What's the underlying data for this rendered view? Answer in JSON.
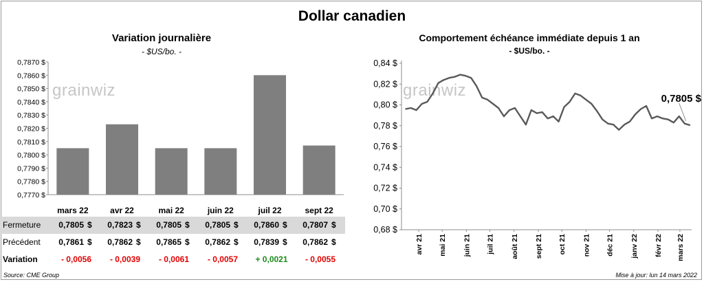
{
  "title": "Dollar canadien",
  "left": {
    "title": "Variation  journalière",
    "subtitle": "- $US/bo. -",
    "watermark": "grainwiz"
  },
  "right": {
    "title": "Comportement échéance immédiate depuis 1 an",
    "subtitle": "- $US/bo. -",
    "watermark": "grainwiz",
    "last_value_label": "0,7805 $"
  },
  "table": {
    "rows": [
      {
        "label": "Fermeture",
        "cells": [
          "0,7805",
          "0,7823",
          "0,7805",
          "0,7805",
          "0,7860",
          "0,7807"
        ]
      },
      {
        "label": "Précédent",
        "cells": [
          "0,7861",
          "0,7862",
          "0,7865",
          "0,7862",
          "0,7839",
          "0,7862"
        ]
      },
      {
        "label": "Variation",
        "cells": [
          "- 0,0056",
          "- 0,0039",
          "- 0,0061",
          "- 0,0057",
          "+ 0,0021",
          "- 0,0055"
        ]
      }
    ],
    "currency": "$"
  },
  "colors": {
    "bar": "#7f7f7f",
    "line": "#595959",
    "negative": "#e00000",
    "positive": "#1a8c1a",
    "shaded_row": "#d9d9d9"
  },
  "source": "Source: CME Group",
  "updated": "Mise à jour: lun 14 mars 2022",
  "chart_data": [
    {
      "type": "bar",
      "title": "Variation  journalière",
      "subtitle": "- $US/bo. -",
      "categories": [
        "mars 22",
        "avr 22",
        "mai 22",
        "juin 22",
        "juil 22",
        "sept 22"
      ],
      "values": [
        0.7805,
        0.7823,
        0.7805,
        0.7805,
        0.786,
        0.7807
      ],
      "ylim": [
        0.777,
        0.787
      ],
      "yticks": [
        "0,7770 $",
        "0,7780 $",
        "0,7790 $",
        "0,7800 $",
        "0,7810 $",
        "0,7820 $",
        "0,7830 $",
        "0,7840 $",
        "0,7850 $",
        "0,7860 $",
        "0,7870 $"
      ],
      "grid": false
    },
    {
      "type": "line",
      "title": "Comportement échéance immédiate depuis 1 an",
      "subtitle": "- $US/bo. -",
      "ylim": [
        0.68,
        0.84
      ],
      "yticks": [
        "0,68 $",
        "0,70 $",
        "0,72 $",
        "0,74 $",
        "0,76 $",
        "0,78 $",
        "0,80 $",
        "0,82 $",
        "0,84 $"
      ],
      "xticks": [
        "avr 21",
        "mai 21",
        "juin 21",
        "juil 21",
        "août 21",
        "sept 21",
        "oct 21",
        "nov 21",
        "déc 21",
        "janv 22",
        "févr 22",
        "mars 22"
      ],
      "x": [
        "2021-03-15",
        "2021-03-22",
        "2021-03-29",
        "2021-04-05",
        "2021-04-12",
        "2021-04-19",
        "2021-04-26",
        "2021-05-03",
        "2021-05-10",
        "2021-05-17",
        "2021-05-24",
        "2021-05-31",
        "2021-06-07",
        "2021-06-14",
        "2021-06-21",
        "2021-06-28",
        "2021-07-05",
        "2021-07-12",
        "2021-07-19",
        "2021-07-26",
        "2021-08-02",
        "2021-08-09",
        "2021-08-16",
        "2021-08-23",
        "2021-08-30",
        "2021-09-06",
        "2021-09-13",
        "2021-09-20",
        "2021-09-27",
        "2021-10-04",
        "2021-10-11",
        "2021-10-18",
        "2021-10-25",
        "2021-11-01",
        "2021-11-08",
        "2021-11-15",
        "2021-11-22",
        "2021-11-29",
        "2021-12-06",
        "2021-12-13",
        "2021-12-20",
        "2021-12-27",
        "2022-01-03",
        "2022-01-10",
        "2022-01-17",
        "2022-01-24",
        "2022-01-31",
        "2022-02-07",
        "2022-02-14",
        "2022-02-21",
        "2022-02-28",
        "2022-03-07",
        "2022-03-14"
      ],
      "y": [
        0.796,
        0.797,
        0.795,
        0.801,
        0.803,
        0.811,
        0.821,
        0.824,
        0.826,
        0.827,
        0.829,
        0.828,
        0.826,
        0.818,
        0.807,
        0.805,
        0.801,
        0.797,
        0.789,
        0.795,
        0.797,
        0.789,
        0.781,
        0.795,
        0.792,
        0.793,
        0.787,
        0.789,
        0.784,
        0.798,
        0.803,
        0.811,
        0.809,
        0.805,
        0.801,
        0.794,
        0.786,
        0.782,
        0.781,
        0.776,
        0.781,
        0.784,
        0.791,
        0.796,
        0.799,
        0.787,
        0.789,
        0.787,
        0.786,
        0.783,
        0.789,
        0.782,
        0.7805
      ],
      "last_value_label": "0,7805 $",
      "grid": false
    }
  ]
}
